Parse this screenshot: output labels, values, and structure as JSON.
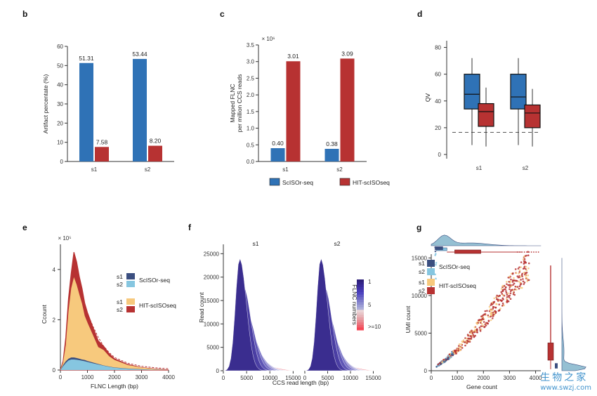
{
  "colors": {
    "blue": "#2f72b6",
    "red": "#b73232",
    "s1_sc_dark": "#3b4f80",
    "s2_sc_light": "#86c6e0",
    "s1_hit_yellow": "#f7c97d",
    "s2_hit_red": "#b73232",
    "purple_dark": "#3a2d8f",
    "pink": "#f0707a"
  },
  "watermark": {
    "cn": "生物之家",
    "url": "www.swzj.com"
  },
  "chart_data": [
    {
      "panel": "b",
      "type": "bar",
      "categories": [
        "s1",
        "s2"
      ],
      "series": [
        {
          "name": "ScISOr-seq",
          "values": [
            51.31,
            53.44
          ],
          "labels": [
            "51.31",
            "53.44"
          ]
        },
        {
          "name": "HIT-scISOseq",
          "values": [
            7.58,
            8.2
          ],
          "labels": [
            "7.58",
            "8.20"
          ]
        }
      ],
      "ylabel": "Artifact percentate (%)",
      "ylim": [
        0,
        60
      ],
      "yticks": [
        "0",
        "10",
        "20",
        "30",
        "40",
        "50",
        "60"
      ]
    },
    {
      "panel": "c",
      "type": "bar",
      "categories": [
        "s1",
        "s2"
      ],
      "series": [
        {
          "name": "ScISOr-seq",
          "values": [
            0.4,
            0.38
          ],
          "labels": [
            "0.40",
            "0.38"
          ]
        },
        {
          "name": "HIT-scISOseq",
          "values": [
            3.01,
            3.09
          ],
          "labels": [
            "3.01",
            "3.09"
          ]
        }
      ],
      "ylabel": [
        "Mapped FLNC",
        "per million CCS reads"
      ],
      "scale_label": "× 10⁶",
      "ylim": [
        0,
        3.5
      ],
      "yticks": [
        "0.0",
        "0.5",
        "1.0",
        "1.5",
        "2.0",
        "2.5",
        "3.0",
        "3.5"
      ]
    },
    {
      "panel": "d",
      "type": "box",
      "categories": [
        "s1",
        "s2"
      ],
      "series": [
        {
          "name": "ScISOr-seq",
          "boxes": [
            {
              "whisker_low": 7,
              "q1": 34,
              "median": 45,
              "q3": 60,
              "whisker_high": 72
            },
            {
              "whisker_low": 7,
              "q1": 34,
              "median": 43,
              "q3": 60,
              "whisker_high": 72
            }
          ]
        },
        {
          "name": "HIT-scISOseq",
          "boxes": [
            {
              "whisker_low": 6,
              "q1": 21,
              "median": 32,
              "q3": 38,
              "whisker_high": 50
            },
            {
              "whisker_low": 6,
              "q1": 20,
              "median": 31,
              "q3": 37,
              "whisker_high": 49
            }
          ]
        }
      ],
      "reference_line": 16.5,
      "ylabel": "QV",
      "ylim": [
        0,
        85
      ],
      "yticks": [
        "0",
        "20",
        "40",
        "60",
        "80"
      ]
    },
    {
      "panel": "e",
      "type": "area",
      "xlabel": "FLNC Length (bp)",
      "ylabel": "Ccount",
      "scale_label": "× 10⁵",
      "xlim": [
        0,
        4000
      ],
      "ylim": [
        0,
        5
      ],
      "xticks": [
        "0",
        "1000",
        "2000",
        "3000",
        "4000"
      ],
      "yticks": [
        "0",
        "2",
        "4"
      ],
      "x": [
        0,
        100,
        200,
        300,
        400,
        500,
        600,
        700,
        800,
        900,
        1000,
        1200,
        1400,
        1600,
        1800,
        2000,
        2500,
        3000,
        3500,
        4000
      ],
      "series": [
        {
          "name": "s1 ScISOr-seq",
          "values": [
            0,
            0.2,
            0.35,
            0.45,
            0.5,
            0.5,
            0.48,
            0.45,
            0.42,
            0.4,
            0.36,
            0.3,
            0.24,
            0.18,
            0.14,
            0.1,
            0.06,
            0.03,
            0.01,
            0
          ]
        },
        {
          "name": "s2 ScISOr-seq",
          "values": [
            0,
            0.15,
            0.28,
            0.38,
            0.42,
            0.42,
            0.41,
            0.39,
            0.37,
            0.35,
            0.32,
            0.27,
            0.22,
            0.17,
            0.13,
            0.09,
            0.05,
            0.02,
            0.01,
            0
          ]
        },
        {
          "name": "s1 HIT-scISOseq",
          "values": [
            0,
            0.3,
            1.0,
            2.3,
            3.3,
            3.6,
            3.4,
            3.1,
            2.6,
            2.2,
            1.8,
            1.4,
            1.0,
            0.75,
            0.55,
            0.4,
            0.2,
            0.1,
            0.04,
            0
          ]
        },
        {
          "name": "s2 HIT-scISOseq",
          "values": [
            0,
            0.35,
            1.3,
            2.8,
            3.9,
            4.6,
            4.3,
            3.8,
            3.2,
            2.7,
            2.2,
            1.7,
            1.25,
            0.9,
            0.65,
            0.45,
            0.22,
            0.1,
            0.04,
            0
          ]
        }
      ],
      "legend": [
        {
          "sample": "s1",
          "group": "ScISOr-seq",
          "color": "#3b4f80"
        },
        {
          "sample": "s2",
          "group": "",
          "color": "#86c6e0"
        },
        {
          "sample": "s1",
          "group": "HIT-scISOseq",
          "color": "#f7c97d"
        },
        {
          "sample": "s2",
          "group": "",
          "color": "#b73232"
        }
      ]
    },
    {
      "panel": "f",
      "type": "area",
      "subplots": [
        "s1",
        "s2"
      ],
      "xlabel": "CCS read length (bp)",
      "ylabel": "Read count",
      "xlim": [
        0,
        16000
      ],
      "ylim": [
        0,
        27000
      ],
      "xticks": [
        "0",
        "5000",
        "10000",
        "15000"
      ],
      "yticks": [
        "0",
        "5000",
        "10000",
        "15000",
        "20000",
        "25000"
      ],
      "series": [
        {
          "name": "1",
          "peak_x": 3500,
          "peak_y": 24000,
          "width": 1700
        },
        {
          "name": "2",
          "peak_x": 4300,
          "peak_y": 18000,
          "width": 1900
        },
        {
          "name": "3",
          "peak_x": 5000,
          "peak_y": 12500,
          "width": 2100
        },
        {
          "name": "4",
          "peak_x": 5600,
          "peak_y": 8500,
          "width": 2300
        },
        {
          "name": "5",
          "peak_x": 6200,
          "peak_y": 5500,
          "width": 2500
        },
        {
          "name": "6",
          "peak_x": 6800,
          "peak_y": 3500,
          "width": 2700
        },
        {
          "name": "7",
          "peak_x": 7300,
          "peak_y": 2200,
          "width": 2900
        },
        {
          "name": ">=10",
          "peak_x": 8200,
          "peak_y": 1200,
          "width": 3300
        }
      ],
      "colorbar": {
        "title": "FLNC numbers",
        "labels": [
          "1",
          "5",
          ">=10"
        ]
      }
    },
    {
      "panel": "g",
      "type": "scatter",
      "xlabel": "Gene count",
      "ylabel": "UMI count",
      "xlim": [
        0,
        4200
      ],
      "ylim": [
        0,
        15500
      ],
      "xticks": [
        "0",
        "1000",
        "2000",
        "3000",
        "4000"
      ],
      "yticks": [
        "0",
        "5000",
        "10000",
        "15000"
      ],
      "trend": [
        [
          200,
          600
        ],
        [
          600,
          1600
        ],
        [
          1000,
          2800
        ],
        [
          1500,
          4600
        ],
        [
          2000,
          6600
        ],
        [
          2500,
          8800
        ],
        [
          3000,
          11000
        ],
        [
          3500,
          13000
        ],
        [
          3800,
          14300
        ]
      ],
      "legend": [
        {
          "sample": "s1",
          "group": "ScISOr-seq",
          "color": "#3b4f80"
        },
        {
          "sample": "s2",
          "group": "",
          "color": "#86c6e0"
        },
        {
          "sample": "s1",
          "group": "HIT-scISOseq",
          "color": "#f7c97d"
        },
        {
          "sample": "s2",
          "group": "",
          "color": "#b73232"
        }
      ]
    }
  ]
}
